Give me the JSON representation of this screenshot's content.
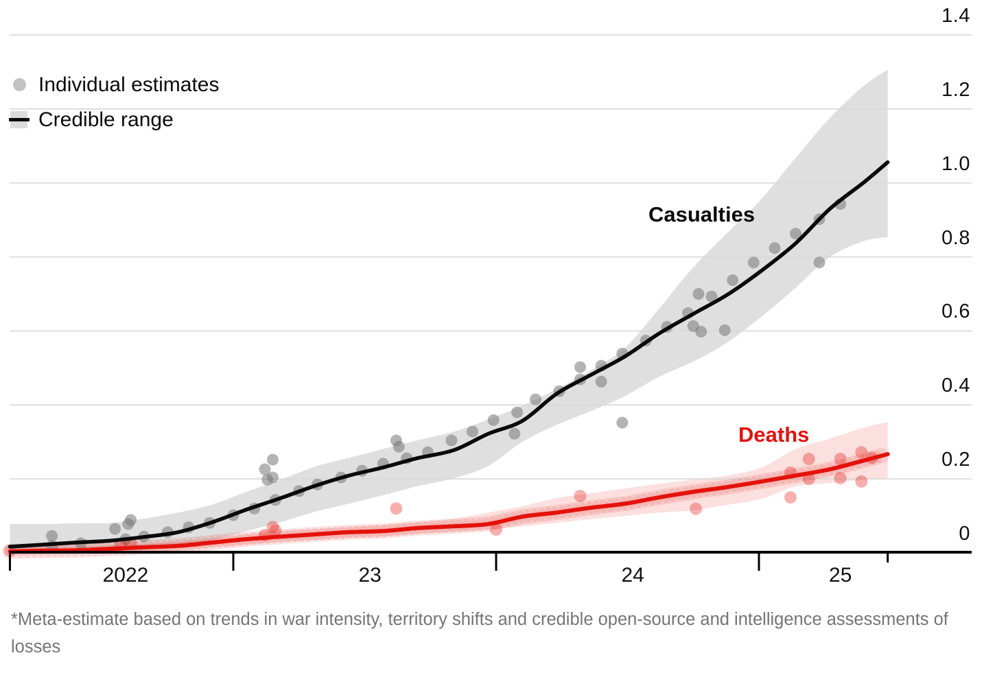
{
  "legend": {
    "items": [
      {
        "label": "Individual estimates",
        "swatch": "gray-dot"
      },
      {
        "label": "Credible range",
        "swatch": "gray-band-with-line"
      }
    ]
  },
  "series_labels": {
    "casualties": "Casualties",
    "deaths": "Deaths"
  },
  "footnote": "*Meta-estimate based on trends in war intensity, territory shifts and credible open-source and intelligence assessments of losses",
  "colors": {
    "red": "#e3120b",
    "black": "#0a0a0a",
    "gray_band": "#dfdfdf",
    "pink_band_rgba": "rgba(227,18,11,0.13)",
    "gray_dot": "#777777",
    "grid": "#d8d8d8",
    "footnote_gray": "#757575"
  },
  "chart_data": {
    "type": "line",
    "title": "",
    "xlabel": "",
    "ylabel": "",
    "x_range_years": [
      2022.15,
      2025.49
    ],
    "ylim": [
      0,
      1.4
    ],
    "grid": "horizontal",
    "legend_position": "top-left",
    "y_ticks": {
      "values": [
        0,
        0.2,
        0.4,
        0.6,
        0.8,
        1.0,
        1.2,
        1.4
      ],
      "labels": [
        "0",
        "0.2",
        "0.4",
        "0.6",
        "0.8",
        "1.0",
        "1.2",
        "1.4"
      ]
    },
    "x_ticks": {
      "major_years": [
        2022.15,
        2023,
        2024,
        2025
      ],
      "minor_years": [
        2025.49
      ],
      "labels": [
        {
          "text": "2022",
          "t": 2022.59
        },
        {
          "text": "23",
          "t": 2023.52
        },
        {
          "text": "24",
          "t": 2024.52
        },
        {
          "text": "25",
          "t": 2025.31
        }
      ]
    },
    "t": [
      2022.15,
      2022.27,
      2022.4,
      2022.53,
      2022.66,
      2022.79,
      2022.92,
      2023.05,
      2023.18,
      2023.31,
      2023.44,
      2023.57,
      2023.7,
      2023.84,
      2023.97,
      2024.1,
      2024.23,
      2024.36,
      2024.49,
      2024.62,
      2024.75,
      2024.88,
      2025.01,
      2025.14,
      2025.27,
      2025.4,
      2025.49
    ],
    "casualties": {
      "name": "Casualties",
      "mid": [
        0.017,
        0.022,
        0.028,
        0.033,
        0.043,
        0.056,
        0.083,
        0.117,
        0.148,
        0.181,
        0.209,
        0.231,
        0.256,
        0.278,
        0.322,
        0.357,
        0.43,
        0.481,
        0.531,
        0.593,
        0.646,
        0.698,
        0.763,
        0.837,
        0.93,
        1.002,
        1.056
      ],
      "hi": [
        0.078,
        0.078,
        0.08,
        0.081,
        0.093,
        0.109,
        0.131,
        0.165,
        0.198,
        0.233,
        0.257,
        0.281,
        0.304,
        0.328,
        0.361,
        0.398,
        0.443,
        0.494,
        0.554,
        0.66,
        0.772,
        0.865,
        0.957,
        1.068,
        1.176,
        1.263,
        1.306
      ],
      "lo": [
        0.009,
        0.011,
        0.013,
        0.015,
        0.017,
        0.022,
        0.035,
        0.059,
        0.083,
        0.111,
        0.133,
        0.156,
        0.18,
        0.202,
        0.235,
        0.3,
        0.346,
        0.383,
        0.424,
        0.476,
        0.517,
        0.569,
        0.639,
        0.717,
        0.8,
        0.843,
        0.854
      ],
      "estimates": [
        [
          2022.31,
          0.046
        ],
        [
          2022.31,
          0.019
        ],
        [
          2022.42,
          0.026
        ],
        [
          2022.55,
          0.065
        ],
        [
          2022.59,
          0.037
        ],
        [
          2022.6,
          0.078
        ],
        [
          2022.61,
          0.089
        ],
        [
          2022.66,
          0.044
        ],
        [
          2022.75,
          0.056
        ],
        [
          2022.83,
          0.069
        ],
        [
          2022.91,
          0.081
        ],
        [
          2023.0,
          0.102
        ],
        [
          2023.08,
          0.12
        ],
        [
          2023.12,
          0.226
        ],
        [
          2023.13,
          0.198
        ],
        [
          2023.15,
          0.252
        ],
        [
          2023.15,
          0.204
        ],
        [
          2023.16,
          0.143
        ],
        [
          2023.25,
          0.167
        ],
        [
          2023.32,
          0.185
        ],
        [
          2023.41,
          0.204
        ],
        [
          2023.49,
          0.222
        ],
        [
          2023.57,
          0.241
        ],
        [
          2023.62,
          0.304
        ],
        [
          2023.63,
          0.287
        ],
        [
          2023.66,
          0.256
        ],
        [
          2023.74,
          0.272
        ],
        [
          2023.83,
          0.304
        ],
        [
          2023.91,
          0.328
        ],
        [
          2023.99,
          0.359
        ],
        [
          2024.07,
          0.322
        ],
        [
          2024.08,
          0.38
        ],
        [
          2024.15,
          0.415
        ],
        [
          2024.24,
          0.437
        ],
        [
          2024.32,
          0.469
        ],
        [
          2024.32,
          0.502
        ],
        [
          2024.4,
          0.463
        ],
        [
          2024.4,
          0.506
        ],
        [
          2024.48,
          0.352
        ],
        [
          2024.48,
          0.539
        ],
        [
          2024.57,
          0.574
        ],
        [
          2024.65,
          0.611
        ],
        [
          2024.73,
          0.648
        ],
        [
          2024.75,
          0.613
        ],
        [
          2024.78,
          0.598
        ],
        [
          2024.77,
          0.7
        ],
        [
          2024.82,
          0.693
        ],
        [
          2024.87,
          0.602
        ],
        [
          2024.9,
          0.737
        ],
        [
          2024.98,
          0.785
        ],
        [
          2025.06,
          0.824
        ],
        [
          2025.14,
          0.863
        ],
        [
          2025.23,
          0.902
        ],
        [
          2025.31,
          0.943
        ],
        [
          2025.23,
          0.785
        ]
      ]
    },
    "deaths": {
      "name": "Deaths",
      "mid": [
        0.004,
        0.006,
        0.007,
        0.011,
        0.015,
        0.019,
        0.028,
        0.037,
        0.044,
        0.05,
        0.056,
        0.059,
        0.067,
        0.072,
        0.078,
        0.098,
        0.109,
        0.122,
        0.133,
        0.15,
        0.165,
        0.178,
        0.193,
        0.209,
        0.226,
        0.25,
        0.267
      ],
      "hi": [
        0.013,
        0.015,
        0.017,
        0.02,
        0.024,
        0.03,
        0.039,
        0.05,
        0.059,
        0.065,
        0.07,
        0.076,
        0.083,
        0.093,
        0.109,
        0.126,
        0.148,
        0.161,
        0.174,
        0.187,
        0.198,
        0.209,
        0.231,
        0.281,
        0.309,
        0.339,
        0.354
      ],
      "lo": [
        -0.006,
        -0.004,
        -0.002,
        0.0,
        0.004,
        0.007,
        0.015,
        0.022,
        0.03,
        0.035,
        0.041,
        0.044,
        0.052,
        0.057,
        0.063,
        0.072,
        0.081,
        0.091,
        0.1,
        0.109,
        0.115,
        0.13,
        0.146,
        0.18,
        0.189,
        0.198,
        0.202
      ],
      "estimates": [
        [
          2022.15,
          0.006
        ],
        [
          2022.57,
          0.022
        ],
        [
          2022.61,
          0.026
        ],
        [
          2023.12,
          0.048
        ],
        [
          2023.15,
          0.07
        ],
        [
          2023.16,
          0.061
        ],
        [
          2023.62,
          0.12
        ],
        [
          2024.0,
          0.063
        ],
        [
          2024.32,
          0.154
        ],
        [
          2024.76,
          0.119
        ],
        [
          2025.12,
          0.217
        ],
        [
          2025.12,
          0.15
        ],
        [
          2025.19,
          0.254
        ],
        [
          2025.19,
          0.2
        ],
        [
          2025.31,
          0.254
        ],
        [
          2025.31,
          0.202
        ],
        [
          2025.39,
          0.272
        ],
        [
          2025.39,
          0.193
        ],
        [
          2025.43,
          0.257
        ]
      ]
    }
  }
}
